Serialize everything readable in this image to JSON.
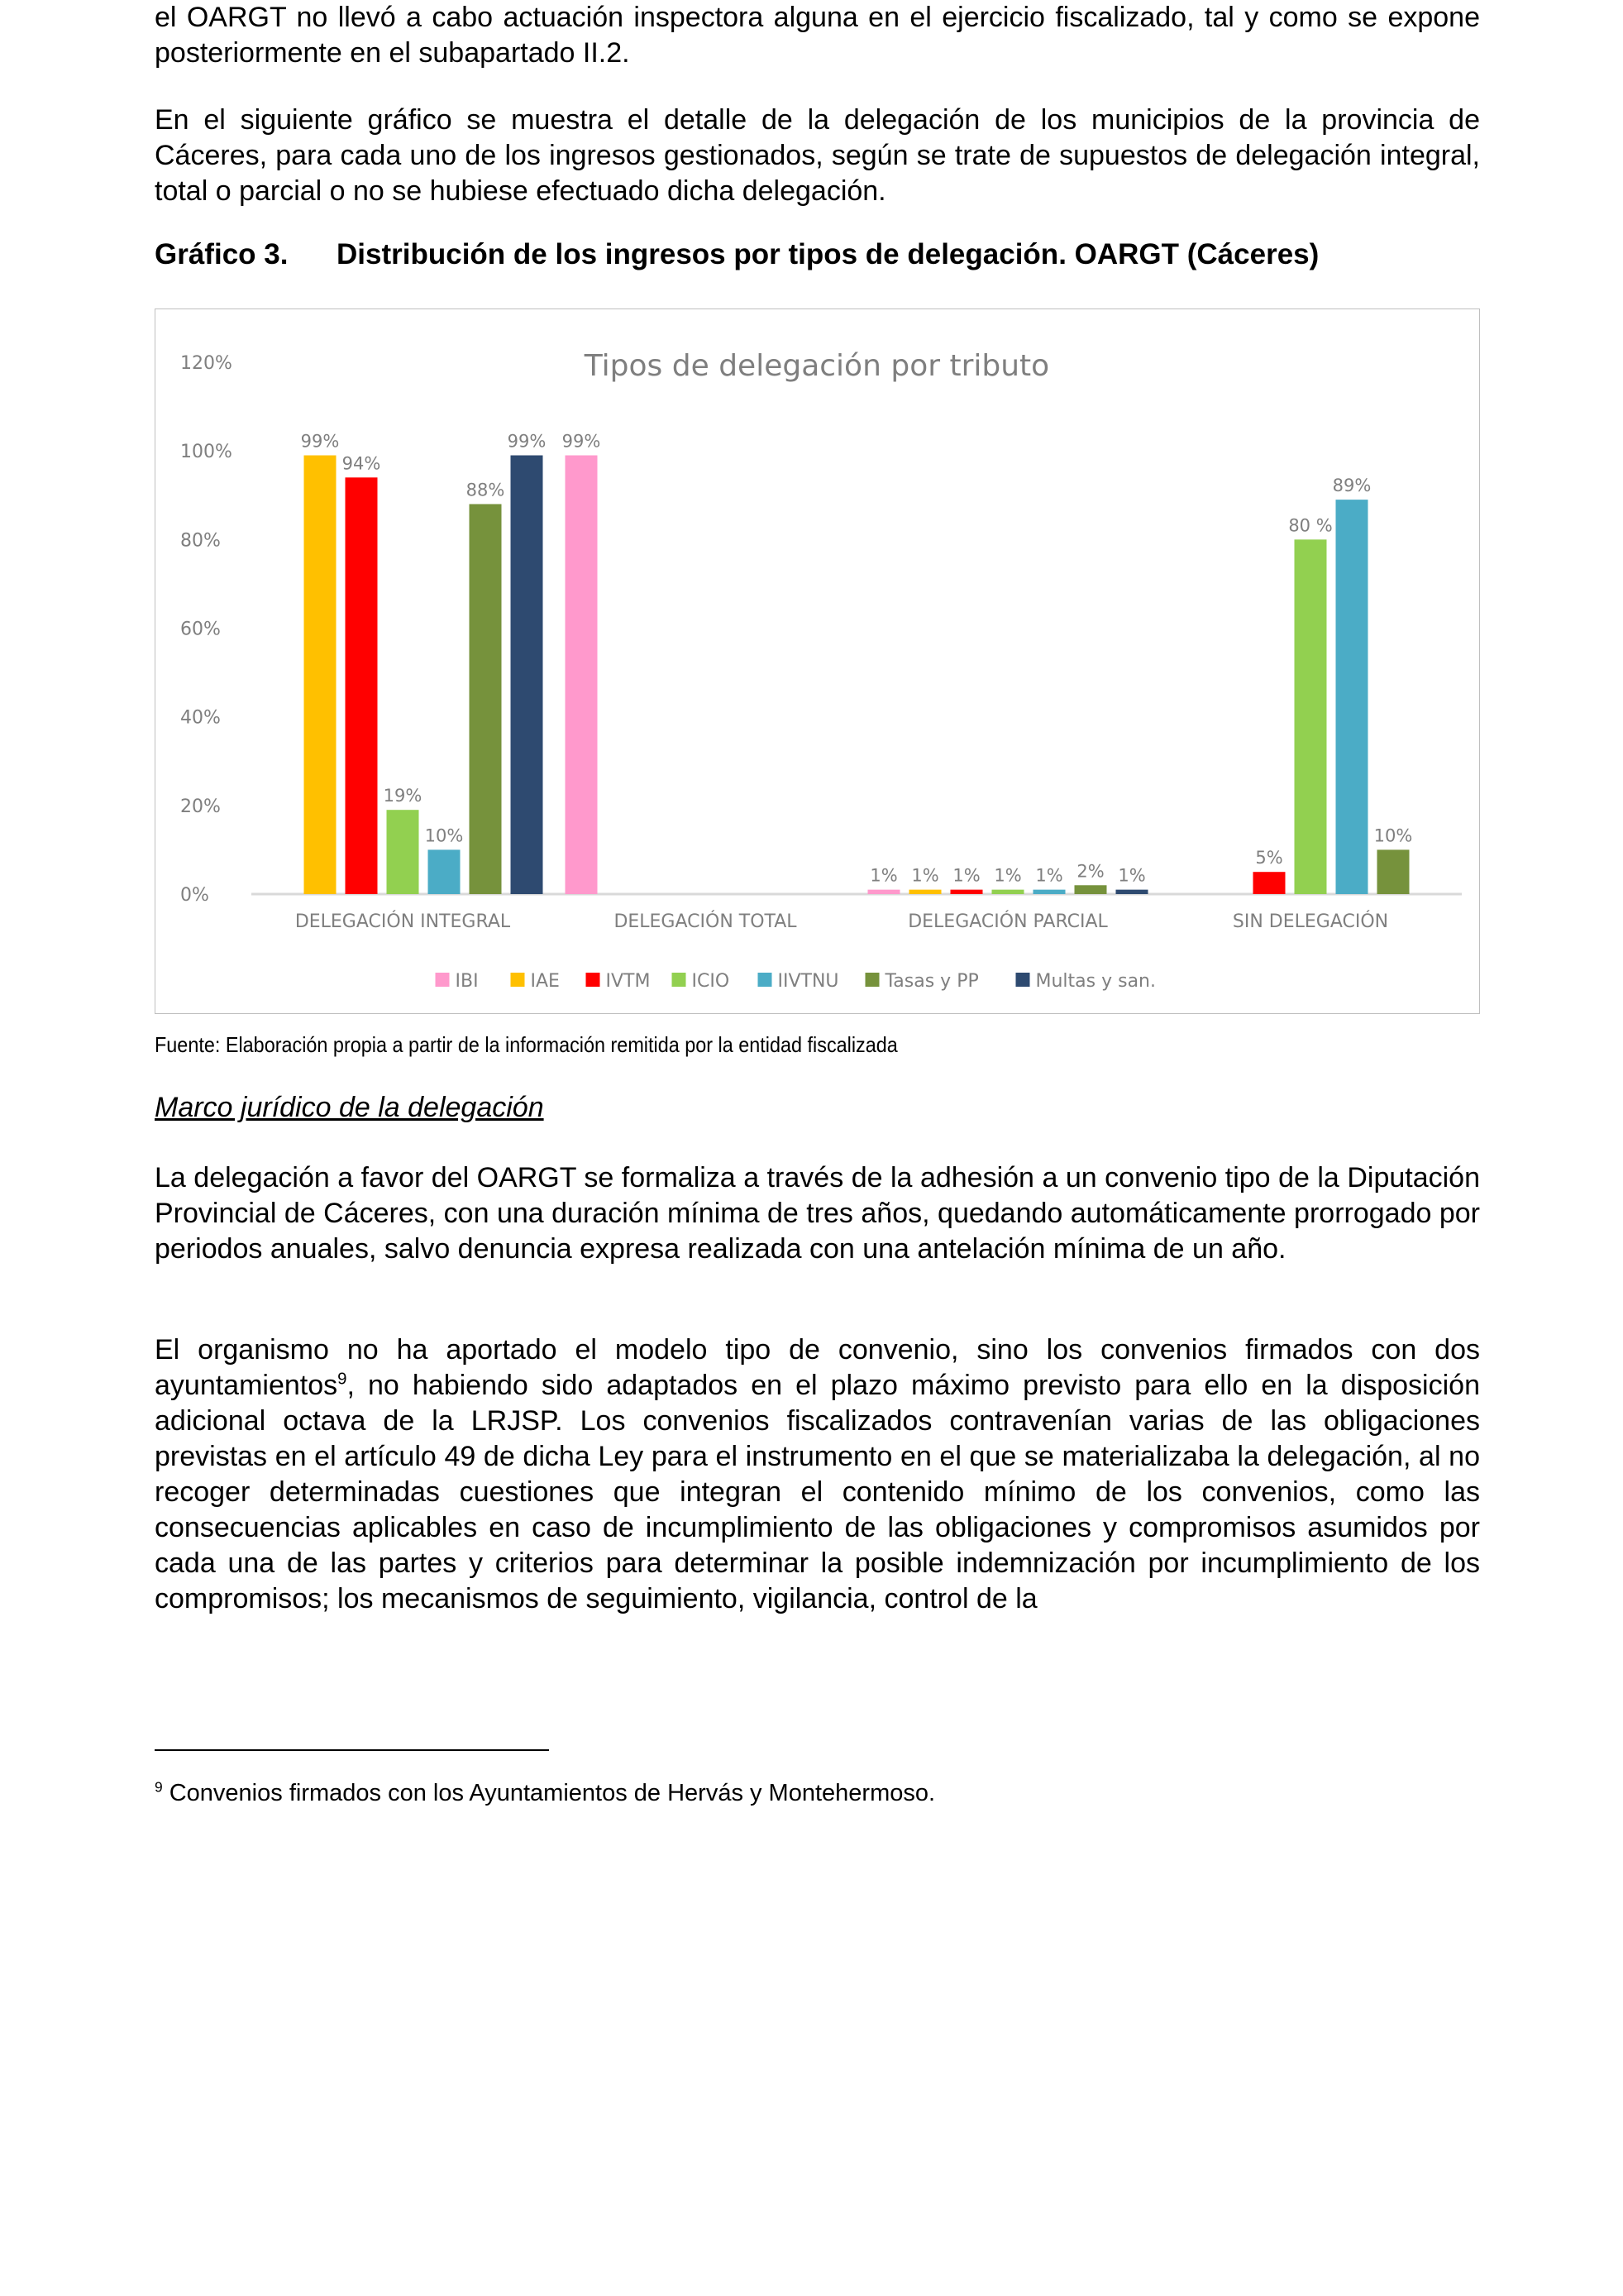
{
  "paragraphs": {
    "p1": "el OARGT no llevó a cabo actuación inspectora alguna en el ejercicio fiscalizado, tal y como se expone posteriormente en el subapartado II.2.",
    "p2": "En el siguiente gráfico se muestra el detalle de la delegación de los municipios de la provincia de Cáceres, para cada uno de los ingresos gestionados, según se trate de supuestos de delegación integral, total o parcial o no se hubiese efectuado dicha delegación.",
    "p3": "La delegación a favor del OARGT se formaliza a través de la adhesión a un convenio tipo de la Diputación Provincial de Cáceres, con una duración mínima de tres años, quedando automáticamente prorrogado por periodos anuales, salvo denuncia expresa realizada con una antelación mínima de un año.",
    "p4_a": "El organismo no ha aportado el modelo tipo de convenio, sino los convenios firmados con dos ayuntamientos",
    "p4_sup": "9",
    "p4_b": ", no habiendo sido adaptados en el plazo máximo previsto para ello en la disposición adicional octava de la LRJSP. Los convenios fiscalizados contravenían varias de las obligaciones previstas en el artículo 49 de dicha Ley para el instrumento en el que se materializaba la delegación, al no recoger determinadas cuestiones que integran el contenido mínimo de los convenios, como las consecuencias aplicables en caso de incumplimiento de las obligaciones y compromisos asumidos por cada una de las partes y criterios para determinar la posible indemnización por incumplimiento de los compromisos; los mecanismos de seguimiento, vigilancia, control de la"
  },
  "caption": {
    "number": "Gráfico 3.",
    "title": "Distribución de los ingresos por tipos de delegación. OARGT (Cáceres)"
  },
  "source": "Fuente: Elaboración propia a partir de la información remitida por la entidad fiscalizada",
  "section_heading": "Marco jurídico de la delegación",
  "footnote": {
    "mark": "9",
    "text": " Convenios firmados con los Ayuntamientos de Hervás y Montehermoso."
  },
  "chart_data": {
    "type": "bar",
    "title": "Tipos de delegación por tributo",
    "categories": [
      "DELEGACIÓN INTEGRAL",
      "DELEGACIÓN TOTAL",
      "DELEGACIÓN PARCIAL",
      "SIN DELEGACIÓN"
    ],
    "ylim": [
      0,
      120
    ],
    "yticks": [
      "0%",
      "20%",
      "40%",
      "60%",
      "80%",
      "100%",
      "120%"
    ],
    "legend_position": "bottom",
    "series": [
      {
        "name": "IBI",
        "color": "#FF99CC",
        "values": [
          null,
          99,
          1,
          null
        ],
        "labels": [
          null,
          "99%",
          "1%",
          null
        ]
      },
      {
        "name": "IAE",
        "color": "#FFC000",
        "values": [
          99,
          null,
          1,
          null
        ],
        "labels": [
          "99%",
          null,
          "1%",
          null
        ]
      },
      {
        "name": "IVTM",
        "color": "#FF0000",
        "values": [
          94,
          null,
          1,
          5
        ],
        "labels": [
          "94%",
          null,
          "1%",
          "5%"
        ]
      },
      {
        "name": "ICIO",
        "color": "#92D050",
        "values": [
          19,
          null,
          1,
          80
        ],
        "labels": [
          "19%",
          null,
          "1%",
          "80 %"
        ]
      },
      {
        "name": "IIVTNU",
        "color": "#4BACC6",
        "values": [
          10,
          null,
          1,
          89
        ],
        "labels": [
          "10%",
          null,
          "1%",
          "89%"
        ]
      },
      {
        "name": "Tasas y PP",
        "color": "#76923C",
        "values": [
          88,
          null,
          2,
          10
        ],
        "labels": [
          "88%",
          null,
          "2%",
          "10%"
        ]
      },
      {
        "name": "Multas y san.",
        "color": "#2E4A70",
        "values": [
          99,
          null,
          1,
          null
        ],
        "labels": [
          "99%",
          null,
          "1%",
          null
        ]
      }
    ]
  }
}
